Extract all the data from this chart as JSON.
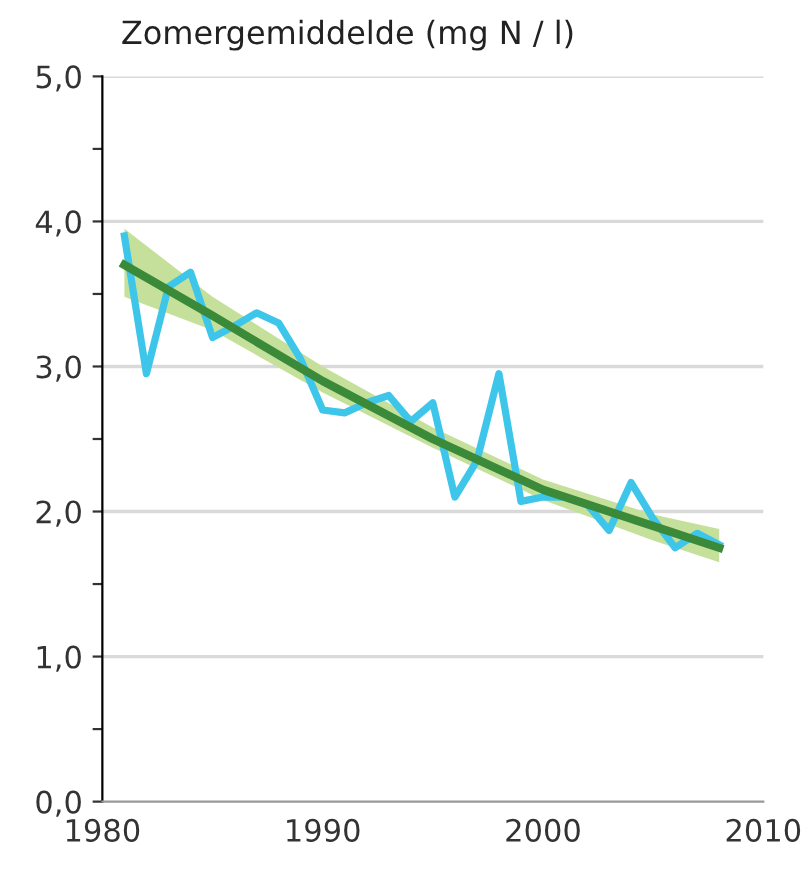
{
  "chart_data": {
    "type": "line",
    "title": "Zomergemiddelde (mg N / l)",
    "xlim": [
      1980,
      2010
    ],
    "xticks": [
      1980,
      1990,
      2000,
      2010
    ],
    "ylim": [
      0,
      5
    ],
    "yticks": [
      {
        "value": 0,
        "label": "0,0"
      },
      {
        "value": 0.5,
        "label": null
      },
      {
        "value": 1,
        "label": "1,0"
      },
      {
        "value": 1.5,
        "label": null
      },
      {
        "value": 2,
        "label": "2,0"
      },
      {
        "value": 2.5,
        "label": null
      },
      {
        "value": 3,
        "label": "3,0"
      },
      {
        "value": 3.5,
        "label": null
      },
      {
        "value": 4,
        "label": "4,0"
      },
      {
        "value": 4.5,
        "label": null
      },
      {
        "value": 5,
        "label": "5,0"
      }
    ],
    "grid": "y",
    "legend": false,
    "marker": "none",
    "line_style": "solid",
    "series": [
      {
        "color": "#3ec6ea",
        "x": [
          1981,
          1982,
          1983,
          1984,
          1985,
          1986,
          1987,
          1988,
          1989,
          1990,
          1991,
          1992,
          1993,
          1994,
          1995,
          1996,
          1997,
          1998,
          1999,
          2000,
          2001,
          2002,
          2003,
          2004,
          2005,
          2006,
          2007,
          2008
        ],
        "values": [
          3.9,
          2.95,
          3.55,
          3.65,
          3.2,
          3.28,
          3.37,
          3.3,
          3.05,
          2.7,
          2.68,
          2.75,
          2.8,
          2.62,
          2.75,
          2.1,
          2.35,
          2.95,
          2.07,
          2.1,
          2.1,
          2.05,
          1.87,
          2.2,
          1.95,
          1.75,
          1.85,
          1.77
        ]
      },
      {
        "color": "#3a8a3a",
        "x": [
          1981,
          1985,
          1990,
          1995,
          2000,
          2005,
          2008
        ],
        "values": [
          3.7,
          3.35,
          2.9,
          2.5,
          2.15,
          1.9,
          1.75
        ],
        "lower": [
          3.48,
          3.25,
          2.82,
          2.44,
          2.08,
          1.8,
          1.65
        ],
        "upper": [
          3.95,
          3.48,
          3.0,
          2.58,
          2.22,
          1.98,
          1.88
        ]
      }
    ]
  }
}
